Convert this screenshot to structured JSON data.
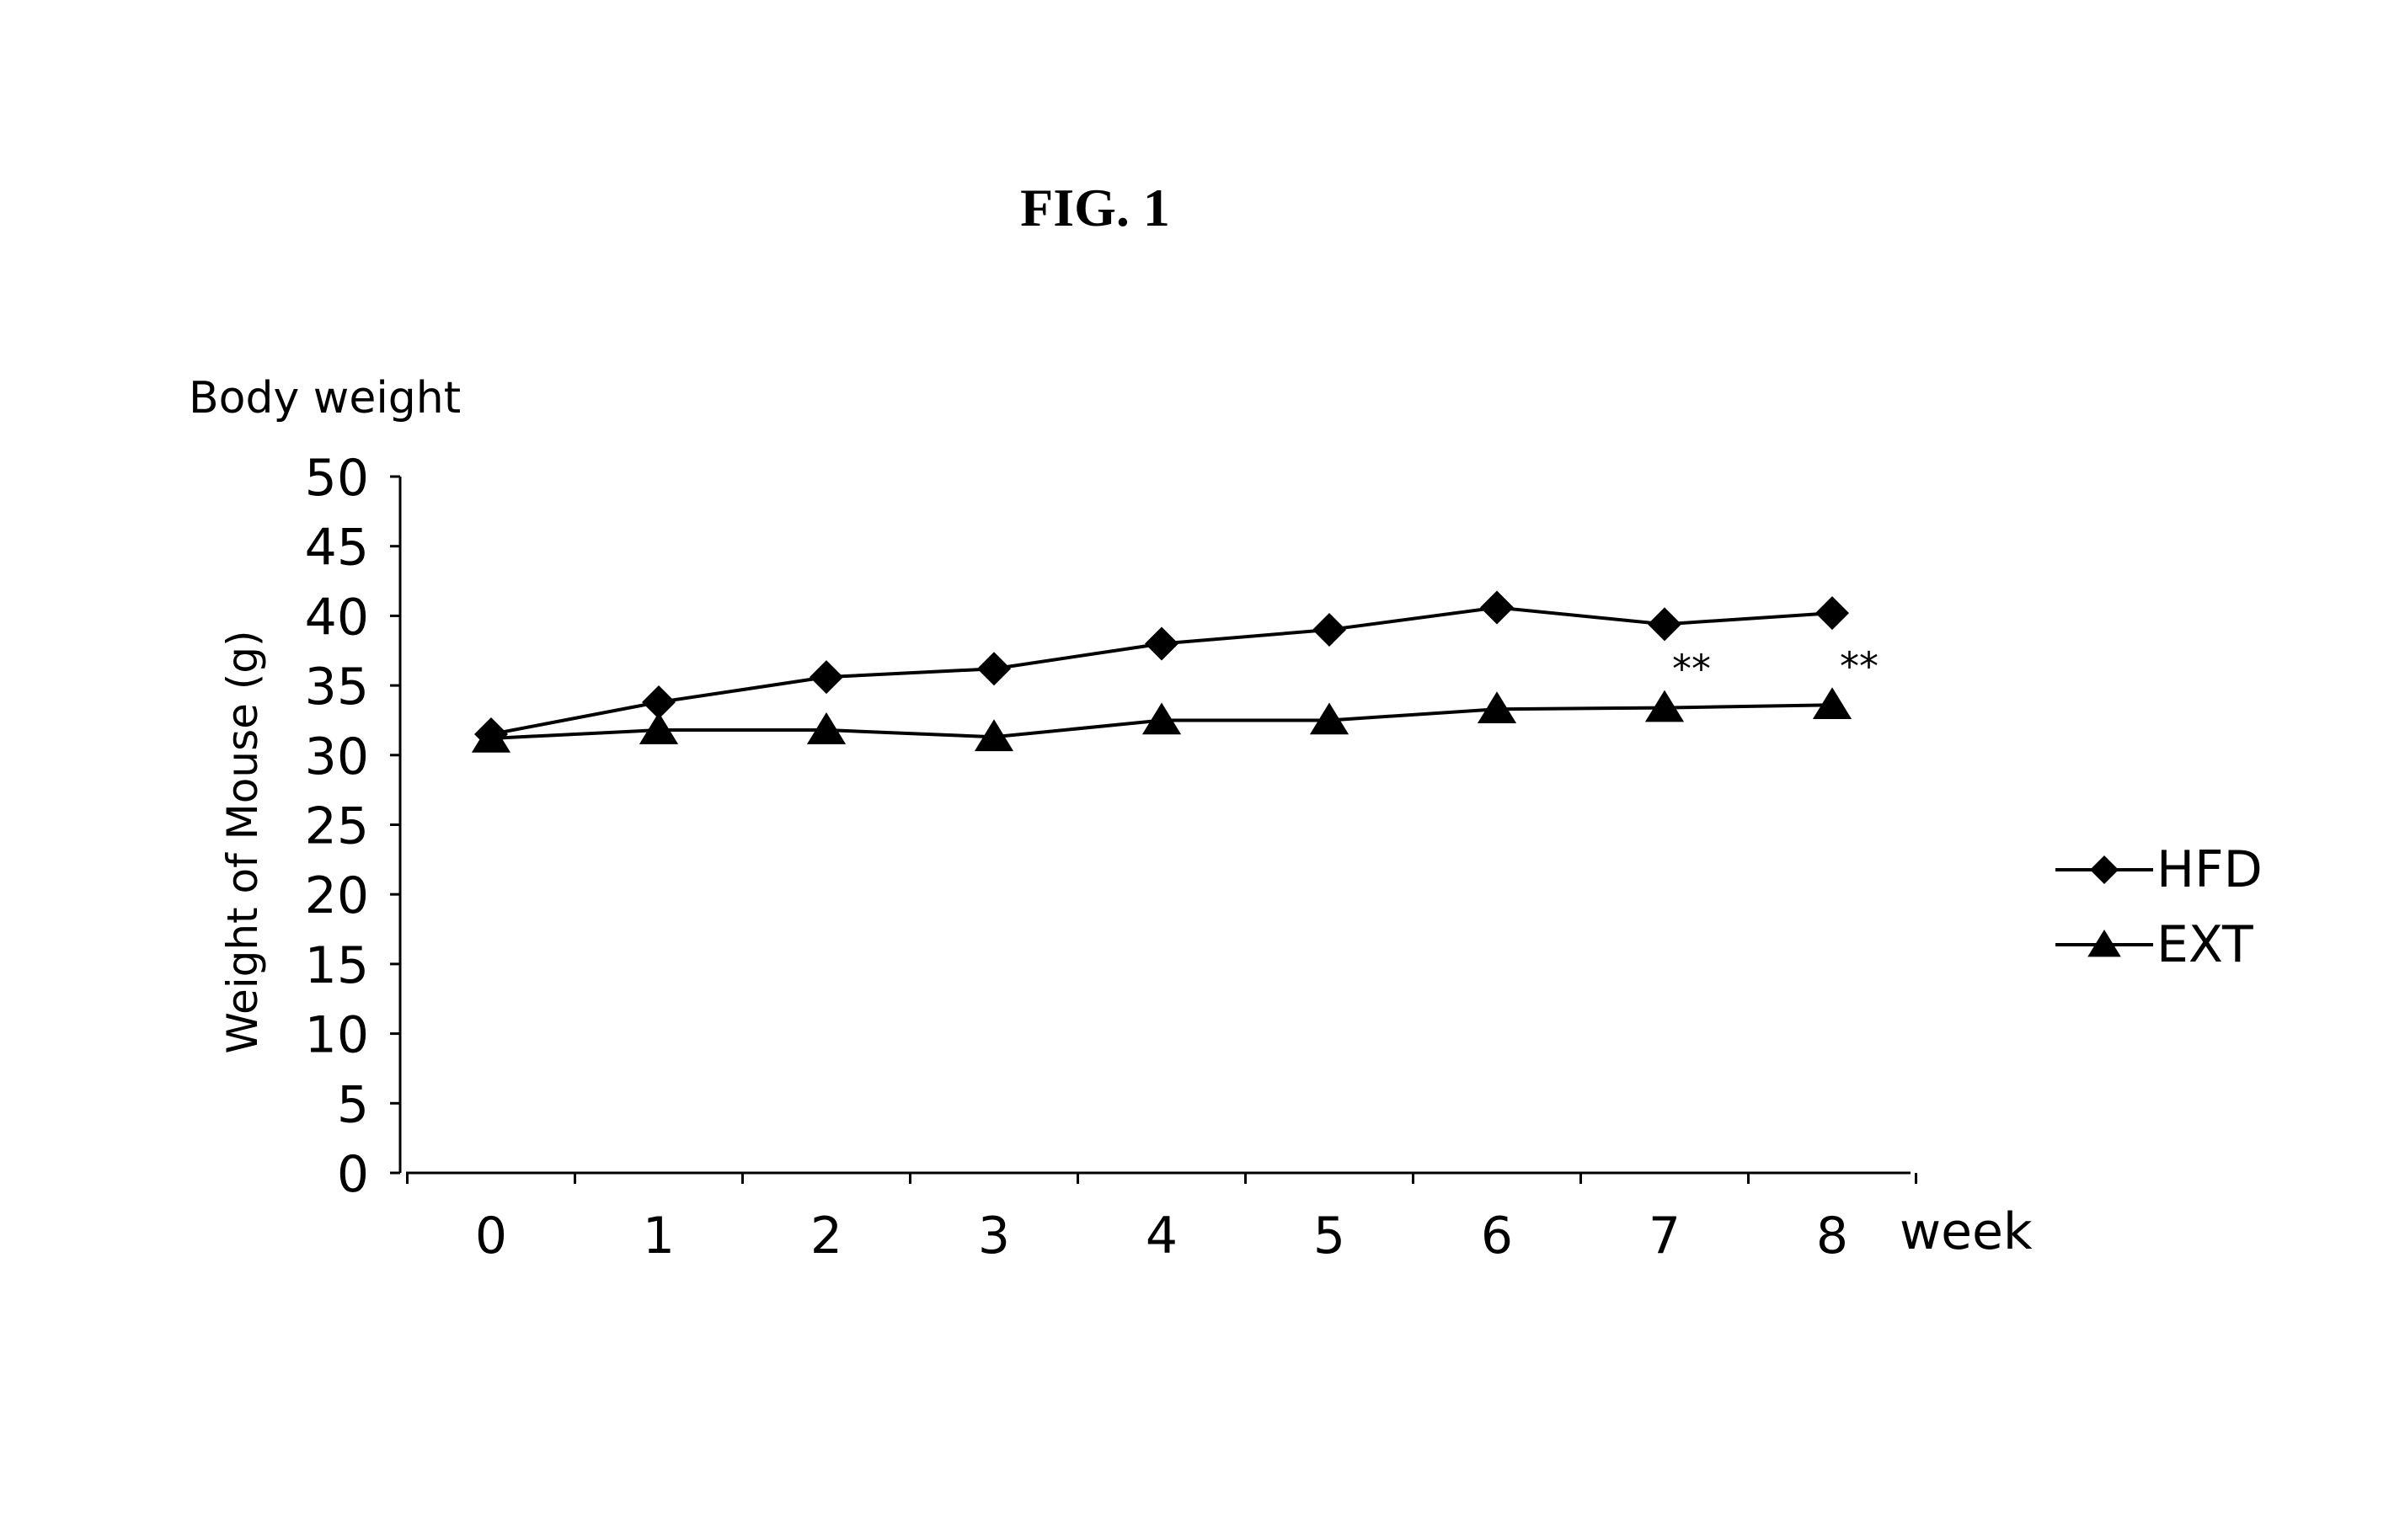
{
  "figure": {
    "label": "FIG. 1"
  },
  "chart_data": {
    "type": "line",
    "title": "",
    "heading": "Body weight",
    "xlabel": "week",
    "ylabel": "Weight of Mouse (g)",
    "x": [
      0,
      1,
      2,
      3,
      4,
      5,
      6,
      7,
      8
    ],
    "x_tick_labels": [
      "0",
      "1",
      "2",
      "3",
      "4",
      "5",
      "6",
      "7",
      "8"
    ],
    "ylim": [
      0,
      50
    ],
    "y_ticks": [
      0,
      5,
      10,
      15,
      20,
      25,
      30,
      35,
      40,
      45,
      50
    ],
    "y_tick_labels": [
      "0",
      "5",
      "10",
      "15",
      "20",
      "25",
      "30",
      "35",
      "40",
      "45",
      "50"
    ],
    "grid": false,
    "legend_position": "right",
    "series": [
      {
        "name": "HFD",
        "marker": "diamond",
        "color": "#000000",
        "values": [
          31.5,
          33.8,
          35.6,
          36.2,
          38.0,
          39.0,
          40.6,
          39.4,
          40.2
        ]
      },
      {
        "name": "EXT",
        "marker": "triangle",
        "color": "#000000",
        "values": [
          31.2,
          31.8,
          31.8,
          31.3,
          32.5,
          32.5,
          33.3,
          33.4,
          33.6
        ]
      }
    ],
    "annotations": [
      {
        "x": 7,
        "text": "**"
      },
      {
        "x": 8,
        "text": "**"
      }
    ]
  }
}
